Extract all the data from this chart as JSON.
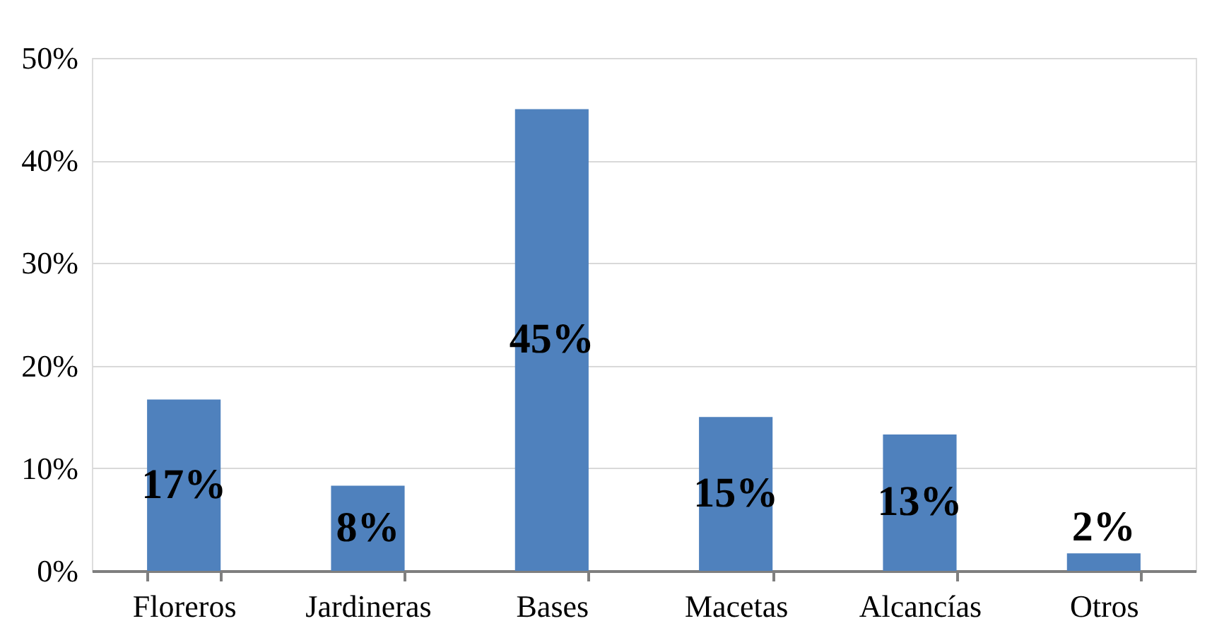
{
  "chart_data": {
    "type": "bar",
    "categories": [
      "Floreros",
      "Jardineras",
      "Bases",
      "Macetas",
      "Alcancías",
      "Otros"
    ],
    "values": [
      16.7,
      8.3,
      45,
      15,
      13.3,
      1.7
    ],
    "value_labels": [
      "17%",
      "8%",
      "45%",
      "15%",
      "13%",
      "2%"
    ],
    "color": "#4f81bd",
    "ylim": [
      0,
      50
    ],
    "yticks": [
      {
        "value": 0,
        "label": "0%"
      },
      {
        "value": 10,
        "label": "10%"
      },
      {
        "value": 20,
        "label": "20%"
      },
      {
        "value": 30,
        "label": "30%"
      },
      {
        "value": 40,
        "label": "40%"
      },
      {
        "value": 50,
        "label": "50%"
      }
    ],
    "grid": "y"
  }
}
